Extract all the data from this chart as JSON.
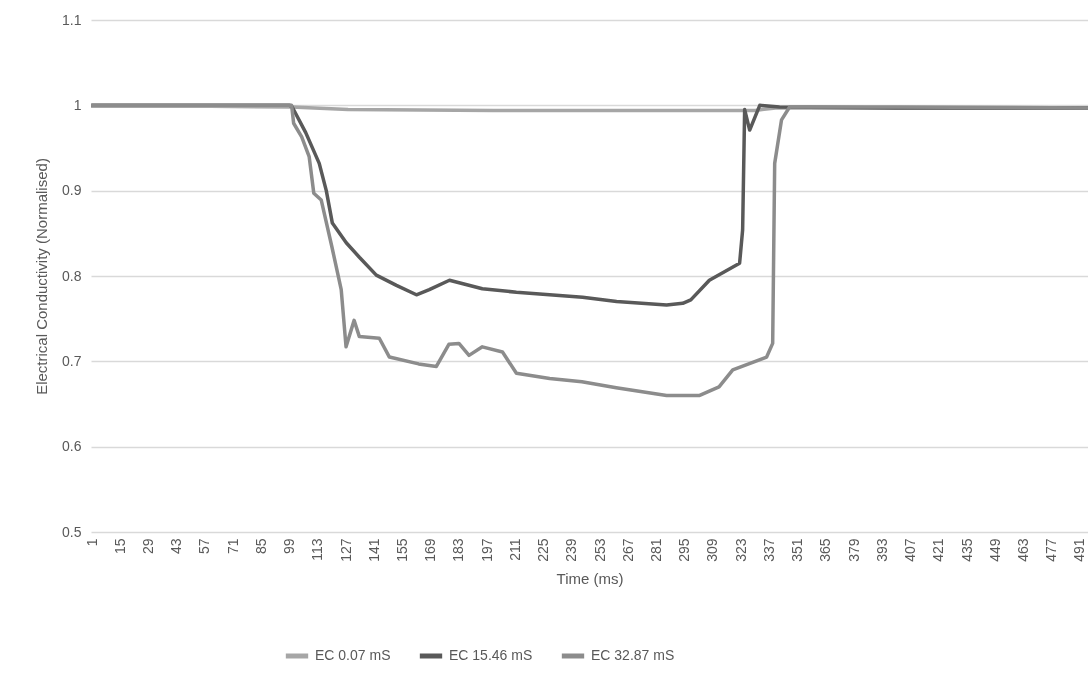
{
  "chart_data": {
    "type": "line",
    "xlabel": "Time (ms)",
    "ylabel": "Electrical Conductivity (Normalised)",
    "xlim": [
      0.5,
      495
    ],
    "xticks": [
      1,
      15,
      29,
      43,
      57,
      71,
      85,
      99,
      113,
      127,
      141,
      155,
      169,
      183,
      197,
      211,
      225,
      239,
      253,
      267,
      281,
      295,
      309,
      323,
      337,
      351,
      365,
      379,
      393,
      407,
      421,
      435,
      449,
      463,
      477,
      491
    ],
    "ylim": [
      0.5,
      1.1
    ],
    "yticks": [
      0.5,
      0.6,
      0.7,
      0.8,
      0.9,
      1,
      1.1
    ],
    "grid": "y",
    "legend": "bottom",
    "marker": "none",
    "line_style": "solid",
    "series": [
      {
        "name": "EC 0.07 mS",
        "color": "#a6a6a6",
        "x": [
          1,
          60,
          100,
          128,
          200,
          300,
          330,
          340,
          400,
          495
        ],
        "values": [
          0.999,
          0.999,
          0.998,
          0.995,
          0.994,
          0.994,
          0.994,
          0.997,
          0.997,
          0.997
        ]
      },
      {
        "name": "EC 15.46 mS",
        "color": "#595959",
        "x": [
          1,
          60,
          99,
          100.3,
          107,
          113.7,
          117.2,
          120.2,
          127.1,
          133.6,
          142,
          152,
          161.9,
          168.3,
          178.3,
          194.6,
          211.5,
          244.3,
          261.2,
          286,
          294,
          298,
          307.2,
          322.2,
          323.7,
          324.7,
          327.2,
          332.2,
          342,
          400,
          495
        ],
        "values": [
          1,
          1,
          1,
          0.998,
          0.968,
          0.932,
          0.9,
          0.862,
          0.839,
          0.822,
          0.801,
          0.789,
          0.778,
          0.784,
          0.795,
          0.785,
          0.781,
          0.775,
          0.77,
          0.766,
          0.768,
          0.772,
          0.795,
          0.815,
          0.854,
          0.995,
          0.971,
          1,
          0.998,
          0.997,
          0.997
        ]
      },
      {
        "name": "EC 32.87 mS",
        "color": "#8c8c8c",
        "x": [
          1,
          60,
          99,
          100,
          101,
          105,
          108.7,
          111,
          114.7,
          120,
          124.6,
          127,
          131,
          133.6,
          143.5,
          148.5,
          163,
          171.8,
          178,
          183,
          188,
          194.6,
          204.6,
          211.5,
          228,
          244,
          261,
          286,
          302.4,
          312,
          318.8,
          335.6,
          338.6,
          339.6,
          343,
          347,
          400,
          495
        ],
        "values": [
          1,
          1,
          1,
          1,
          0.979,
          0.963,
          0.94,
          0.897,
          0.889,
          0.834,
          0.784,
          0.717,
          0.748,
          0.729,
          0.727,
          0.705,
          0.697,
          0.694,
          0.72,
          0.721,
          0.707,
          0.717,
          0.711,
          0.686,
          0.68,
          0.676,
          0.669,
          0.66,
          0.66,
          0.67,
          0.69,
          0.705,
          0.721,
          0.932,
          0.983,
          0.998,
          0.998,
          0.997
        ]
      }
    ]
  }
}
